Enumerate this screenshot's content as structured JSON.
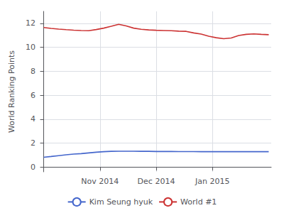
{
  "chart_data": {
    "type": "line",
    "ylabel": "World Ranking Points",
    "x": [
      0,
      3,
      6,
      9,
      12,
      15,
      18,
      21,
      24,
      27,
      30,
      33,
      36,
      39,
      42,
      45,
      48,
      51,
      54,
      57,
      60,
      63,
      66,
      69,
      72,
      75,
      78,
      81,
      84,
      87,
      90
    ],
    "series": [
      {
        "name": "Kim Seung hyuk",
        "color": "#4466cc",
        "values": [
          0.82,
          0.88,
          0.95,
          1.02,
          1.08,
          1.12,
          1.18,
          1.24,
          1.28,
          1.31,
          1.32,
          1.32,
          1.32,
          1.31,
          1.31,
          1.3,
          1.3,
          1.3,
          1.29,
          1.29,
          1.29,
          1.28,
          1.28,
          1.28,
          1.28,
          1.28,
          1.28,
          1.28,
          1.28,
          1.28,
          1.28
        ]
      },
      {
        "name": "World #1",
        "color": "#cc3333",
        "values": [
          11.65,
          11.58,
          11.52,
          11.47,
          11.43,
          11.4,
          11.38,
          11.48,
          11.6,
          11.75,
          11.92,
          11.78,
          11.6,
          11.5,
          11.45,
          11.42,
          11.4,
          11.38,
          11.35,
          11.33,
          11.2,
          11.1,
          10.92,
          10.8,
          10.72,
          10.78,
          10.98,
          11.08,
          11.12,
          11.08,
          11.05
        ]
      }
    ],
    "xlim": [
      -1,
      91
    ],
    "xticks": [
      {
        "value": 22.5,
        "label": "Nov 2014"
      },
      {
        "value": 45,
        "label": "Dec 2014"
      },
      {
        "value": 67.5,
        "label": "Jan 2015"
      }
    ],
    "ylim": [
      -0.4,
      13.0
    ],
    "yticks": [
      0,
      2,
      4,
      6,
      8,
      10,
      12
    ],
    "grid": true,
    "legend": "bottom"
  }
}
